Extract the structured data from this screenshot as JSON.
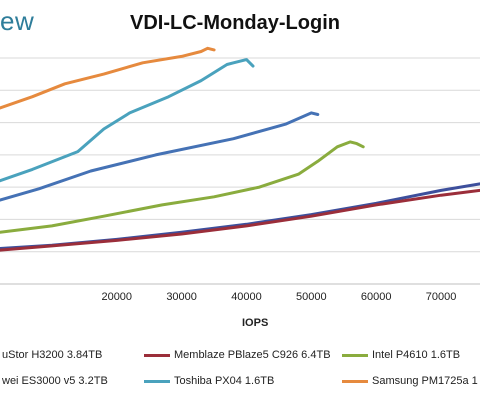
{
  "header": {
    "logo_text": "ew"
  },
  "chart_data": {
    "type": "line",
    "title": "VDI-LC-Monday-Login",
    "xlabel": "IOPS",
    "ylabel": "",
    "x_ticks": [
      "20000",
      "30000",
      "40000",
      "50000",
      "60000",
      "70000"
    ],
    "xlim": [
      2000,
      76000
    ],
    "ylim": [
      0,
      7
    ],
    "grid": "horizontal",
    "legend_position": "bottom",
    "series": [
      {
        "name": "uStor H3200 3.84TB",
        "color": "#3d4f9c",
        "points": [
          [
            2000,
            1.1
          ],
          [
            10000,
            1.2
          ],
          [
            20000,
            1.38
          ],
          [
            30000,
            1.6
          ],
          [
            40000,
            1.85
          ],
          [
            50000,
            2.15
          ],
          [
            60000,
            2.5
          ],
          [
            70000,
            2.9
          ],
          [
            76000,
            3.1
          ]
        ]
      },
      {
        "name": "Memblaze PBlaze5 C926 6.4TB",
        "color": "#9b2e3a",
        "points": [
          [
            2000,
            1.05
          ],
          [
            10000,
            1.18
          ],
          [
            20000,
            1.35
          ],
          [
            30000,
            1.55
          ],
          [
            40000,
            1.8
          ],
          [
            50000,
            2.1
          ],
          [
            60000,
            2.45
          ],
          [
            70000,
            2.75
          ],
          [
            76000,
            2.9
          ]
        ]
      },
      {
        "name": "Intel P4610 1.6TB",
        "color": "#8aac3e",
        "points": [
          [
            2000,
            1.6
          ],
          [
            10000,
            1.8
          ],
          [
            18000,
            2.1
          ],
          [
            27000,
            2.45
          ],
          [
            35000,
            2.7
          ],
          [
            42000,
            3.0
          ],
          [
            48000,
            3.4
          ],
          [
            51000,
            3.8
          ],
          [
            54000,
            4.25
          ],
          [
            56000,
            4.4
          ],
          [
            57000,
            4.35
          ],
          [
            58000,
            4.25
          ]
        ]
      },
      {
        "name": "wei ES3000 v5 3.2TB",
        "color": "#4572b5",
        "points": [
          [
            2000,
            2.6
          ],
          [
            8000,
            2.95
          ],
          [
            16000,
            3.5
          ],
          [
            26000,
            4.0
          ],
          [
            38000,
            4.5
          ],
          [
            46000,
            4.95
          ],
          [
            50000,
            5.3
          ],
          [
            51000,
            5.25
          ]
        ]
      },
      {
        "name": "Toshiba PX04 1.6TB",
        "color": "#4aa2bd",
        "points": [
          [
            2000,
            3.2
          ],
          [
            7000,
            3.55
          ],
          [
            14000,
            4.1
          ],
          [
            18000,
            4.8
          ],
          [
            22000,
            5.3
          ],
          [
            28000,
            5.8
          ],
          [
            33000,
            6.3
          ],
          [
            37000,
            6.8
          ],
          [
            38000,
            6.85
          ],
          [
            40000,
            6.95
          ],
          [
            41000,
            6.75
          ]
        ]
      },
      {
        "name": "Samsung PM1725a 1",
        "color": "#e68a3e",
        "points": [
          [
            2000,
            5.45
          ],
          [
            7000,
            5.8
          ],
          [
            12000,
            6.2
          ],
          [
            18000,
            6.5
          ],
          [
            24000,
            6.85
          ],
          [
            30000,
            7.05
          ],
          [
            33000,
            7.2
          ],
          [
            34000,
            7.3
          ],
          [
            35000,
            7.25
          ]
        ]
      }
    ]
  }
}
